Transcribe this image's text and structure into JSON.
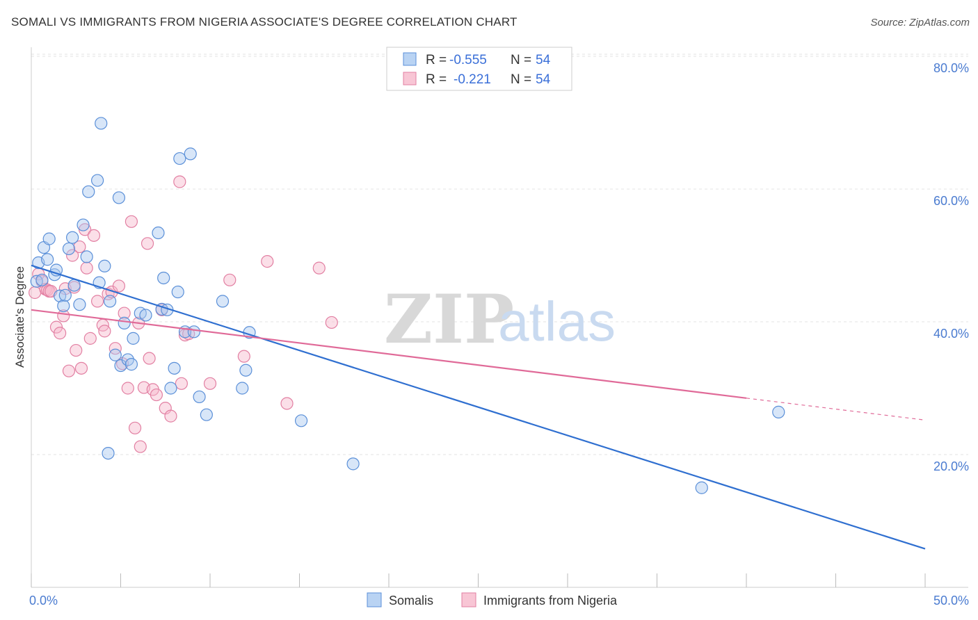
{
  "title": "SOMALI VS IMMIGRANTS FROM NIGERIA ASSOCIATE'S DEGREE CORRELATION CHART",
  "source": "Source: ZipAtlas.com",
  "watermark": {
    "zip": "ZIP",
    "atlas": "atlas"
  },
  "colors": {
    "somali_fill": "#a8c8f0",
    "somali_stroke": "#5a8fd8",
    "somali_line": "#2f6fd0",
    "nigeria_fill": "#f6b8cb",
    "nigeria_stroke": "#e27fa2",
    "nigeria_line": "#e06a98"
  },
  "legend": {
    "rows": [
      {
        "r_label": "R =",
        "r_value": "-0.555",
        "n_label": "N =",
        "n_value": "54"
      },
      {
        "r_label": "R =",
        "r_value": "-0.221",
        "n_label": "N =",
        "n_value": "54"
      }
    ]
  },
  "bottom_legend": [
    "Somalis",
    "Immigrants from Nigeria"
  ],
  "chart_data": {
    "type": "scatter",
    "ylabel": "Associate's Degree",
    "xlim": [
      0,
      50
    ],
    "ylim": [
      0,
      85
    ],
    "x_tick_labels": [
      "0.0%",
      "50.0%"
    ],
    "y_ticks": [
      20,
      40,
      60,
      80
    ],
    "y_tick_labels": [
      "20.0%",
      "40.0%",
      "60.0%",
      "80.0%"
    ],
    "grid": true,
    "legend_position": "top-center",
    "series": [
      {
        "name": "Somalis",
        "trend": {
          "x": [
            0,
            50
          ],
          "y": [
            48.5,
            5.8
          ]
        },
        "points": [
          [
            0.3,
            46.1
          ],
          [
            0.4,
            48.9
          ],
          [
            0.6,
            46.3
          ],
          [
            0.7,
            51.2
          ],
          [
            0.9,
            49.4
          ],
          [
            1.0,
            52.5
          ],
          [
            1.3,
            47.1
          ],
          [
            1.4,
            47.8
          ],
          [
            1.6,
            43.9
          ],
          [
            1.8,
            42.4
          ],
          [
            1.9,
            44.0
          ],
          [
            2.1,
            51.0
          ],
          [
            2.3,
            52.7
          ],
          [
            2.4,
            45.5
          ],
          [
            2.7,
            42.6
          ],
          [
            2.9,
            54.6
          ],
          [
            3.1,
            49.8
          ],
          [
            3.2,
            59.6
          ],
          [
            3.7,
            61.3
          ],
          [
            3.8,
            45.9
          ],
          [
            3.9,
            69.9
          ],
          [
            4.1,
            48.4
          ],
          [
            4.3,
            20.2
          ],
          [
            4.4,
            43.1
          ],
          [
            4.7,
            35.0
          ],
          [
            4.9,
            58.7
          ],
          [
            5.0,
            33.4
          ],
          [
            5.2,
            39.8
          ],
          [
            5.4,
            34.3
          ],
          [
            5.6,
            33.6
          ],
          [
            5.7,
            37.5
          ],
          [
            6.1,
            41.3
          ],
          [
            6.4,
            41.0
          ],
          [
            7.1,
            53.4
          ],
          [
            7.3,
            41.9
          ],
          [
            7.4,
            46.6
          ],
          [
            7.6,
            41.8
          ],
          [
            7.8,
            30.0
          ],
          [
            8.0,
            33.0
          ],
          [
            8.2,
            44.5
          ],
          [
            8.3,
            64.6
          ],
          [
            8.6,
            38.5
          ],
          [
            8.9,
            65.3
          ],
          [
            9.1,
            38.5
          ],
          [
            9.4,
            28.7
          ],
          [
            9.8,
            26.0
          ],
          [
            10.7,
            43.1
          ],
          [
            11.8,
            30.0
          ],
          [
            12.0,
            32.7
          ],
          [
            12.2,
            38.4
          ],
          [
            15.1,
            25.1
          ],
          [
            18.0,
            18.6
          ],
          [
            37.5,
            15.0
          ],
          [
            41.8,
            26.4
          ]
        ]
      },
      {
        "name": "Immigrants from Nigeria",
        "trend": {
          "x": [
            0,
            40
          ],
          "y": [
            41.8,
            28.5
          ]
        },
        "trend_dashed": {
          "x": [
            40,
            50
          ],
          "y": [
            28.5,
            25.2
          ]
        },
        "points": [
          [
            0.2,
            44.4
          ],
          [
            0.4,
            47.2
          ],
          [
            0.6,
            46.1
          ],
          [
            0.8,
            44.9
          ],
          [
            0.9,
            44.8
          ],
          [
            1.0,
            44.6
          ],
          [
            1.1,
            44.6
          ],
          [
            1.4,
            39.2
          ],
          [
            1.6,
            38.3
          ],
          [
            1.8,
            40.9
          ],
          [
            1.9,
            45.0
          ],
          [
            2.1,
            32.6
          ],
          [
            2.3,
            50.0
          ],
          [
            2.4,
            45.2
          ],
          [
            2.5,
            35.7
          ],
          [
            2.7,
            51.3
          ],
          [
            2.8,
            33.0
          ],
          [
            3.0,
            53.9
          ],
          [
            3.1,
            48.1
          ],
          [
            3.3,
            37.5
          ],
          [
            3.5,
            53.0
          ],
          [
            3.7,
            43.1
          ],
          [
            4.0,
            39.5
          ],
          [
            4.1,
            38.6
          ],
          [
            4.3,
            44.2
          ],
          [
            4.5,
            44.5
          ],
          [
            4.7,
            36.0
          ],
          [
            4.9,
            45.4
          ],
          [
            5.1,
            33.7
          ],
          [
            5.2,
            41.3
          ],
          [
            5.4,
            30.0
          ],
          [
            5.6,
            55.1
          ],
          [
            5.8,
            24.0
          ],
          [
            6.0,
            39.8
          ],
          [
            6.1,
            21.2
          ],
          [
            6.3,
            30.1
          ],
          [
            6.5,
            51.8
          ],
          [
            6.6,
            34.5
          ],
          [
            6.8,
            29.8
          ],
          [
            7.0,
            29.0
          ],
          [
            7.3,
            41.8
          ],
          [
            7.5,
            27.0
          ],
          [
            7.8,
            25.8
          ],
          [
            8.3,
            61.1
          ],
          [
            8.4,
            30.7
          ],
          [
            8.6,
            38.0
          ],
          [
            8.8,
            38.2
          ],
          [
            10.0,
            30.7
          ],
          [
            11.1,
            46.3
          ],
          [
            11.9,
            34.8
          ],
          [
            13.2,
            49.1
          ],
          [
            14.3,
            27.7
          ],
          [
            16.1,
            48.1
          ],
          [
            16.8,
            39.9
          ]
        ]
      }
    ]
  }
}
